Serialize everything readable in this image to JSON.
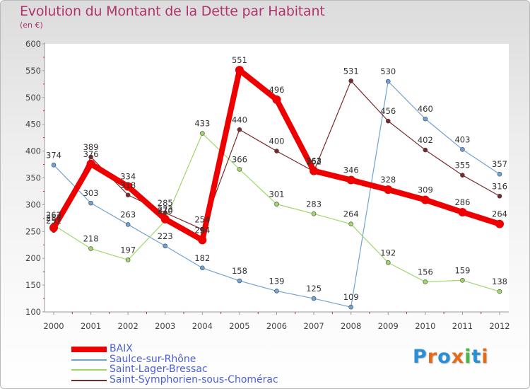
{
  "title": "Evolution du Montant de la Dette par Habitant",
  "subtitle": "(en €)",
  "brand": "Proxiti",
  "chart_data": {
    "type": "line",
    "title": "Evolution du Montant de la Dette par Habitant",
    "ylabel": "(en €)",
    "xlabel": "",
    "x": [
      "2000",
      "2001",
      "2002",
      "2003",
      "2004",
      "2005",
      "2006",
      "2007",
      "2008",
      "2009",
      "2010",
      "2011",
      "2012"
    ],
    "ylim": [
      100,
      600
    ],
    "yticks": [
      100,
      150,
      200,
      250,
      300,
      350,
      400,
      450,
      500,
      550,
      600
    ],
    "grid": false,
    "legend": "bottom-left",
    "series": [
      {
        "name": "BAIX",
        "color": "#ee0000",
        "values": [
          257,
          376,
          334,
          273,
          234,
          551,
          496,
          363,
          346,
          328,
          309,
          286,
          264
        ]
      },
      {
        "name": "Saulce-sur-Rhône",
        "color": "#6fa3d4",
        "values": [
          374,
          303,
          263,
          223,
          182,
          158,
          139,
          125,
          109,
          530,
          460,
          403,
          357
        ]
      },
      {
        "name": "Saint-Lager-Bressac",
        "color": "#9ed86a",
        "values": [
          262,
          218,
          197,
          270,
          433,
          366,
          301,
          283,
          264,
          192,
          156,
          159,
          138
        ]
      },
      {
        "name": "Saint-Symphorien-sous-Chomérac",
        "color": "#7a2a2a",
        "values": [
          252,
          389,
          318,
          285,
          254,
          440,
          400,
          362,
          531,
          456,
          402,
          355,
          316
        ]
      }
    ]
  }
}
